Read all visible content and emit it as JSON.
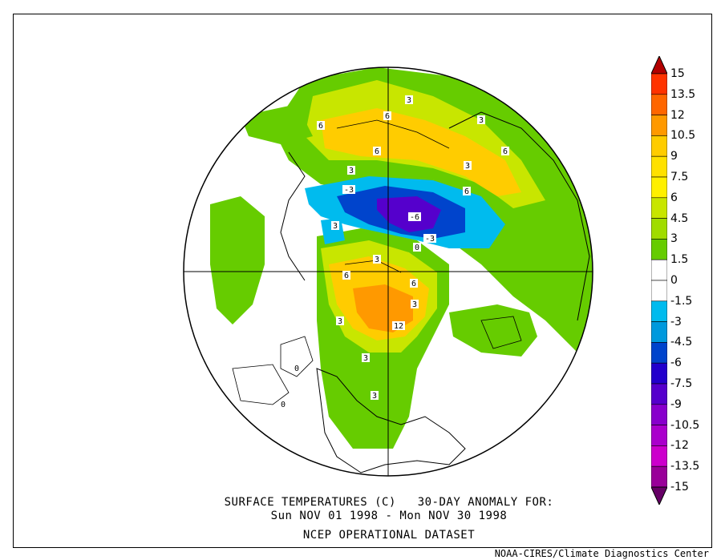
{
  "caption": {
    "line1": "SURFACE TEMPERATURES (C)   30-DAY ANOMALY FOR:",
    "line2": "Sun NOV 01 1998 - Mon NOV 30 1998",
    "line3": "NCEP OPERATIONAL DATASET"
  },
  "credit": "NOAA-CIRES/Climate Diagnostics Center",
  "colorbar": {
    "labels": [
      "15",
      "13.5",
      "12",
      "10.5",
      "9",
      "7.5",
      "6",
      "4.5",
      "3",
      "1.5",
      "0",
      "-1.5",
      "-3",
      "-4.5",
      "-6",
      "-7.5",
      "-9",
      "-10.5",
      "-12",
      "-13.5",
      "-15"
    ],
    "colors": [
      "#b30000",
      "#ff3300",
      "#ff6600",
      "#ff9900",
      "#ffcc00",
      "#ffe100",
      "#fff000",
      "#c8e600",
      "#a0dc00",
      "#66cc00",
      "#ffffff",
      "#ffffff",
      "#00bbee",
      "#0099dd",
      "#0044cc",
      "#2200cc",
      "#5500cc",
      "#8800cc",
      "#aa00cc",
      "#cc00cc",
      "#990099",
      "#660066"
    ]
  },
  "map": {
    "contour_labels": [
      "3",
      "6",
      "6",
      "3",
      "6",
      "6",
      "3",
      "3",
      "6",
      "-3",
      "-6",
      "-3",
      "0",
      "3",
      "6",
      "6",
      "3",
      "3",
      "12",
      "3",
      "3",
      "0",
      "3",
      "0"
    ],
    "colors": {
      "ocean": "#ffffff",
      "warm1": "#66cc00",
      "warm2": "#a0dc00",
      "warm3": "#c8e600",
      "warm4": "#fff000",
      "warm5": "#ffcc00",
      "warm6": "#ff9900",
      "cold1": "#00bbee",
      "cold2": "#0099dd",
      "cold3": "#0044cc",
      "cold4": "#2200cc",
      "cold5": "#5500cc"
    }
  }
}
